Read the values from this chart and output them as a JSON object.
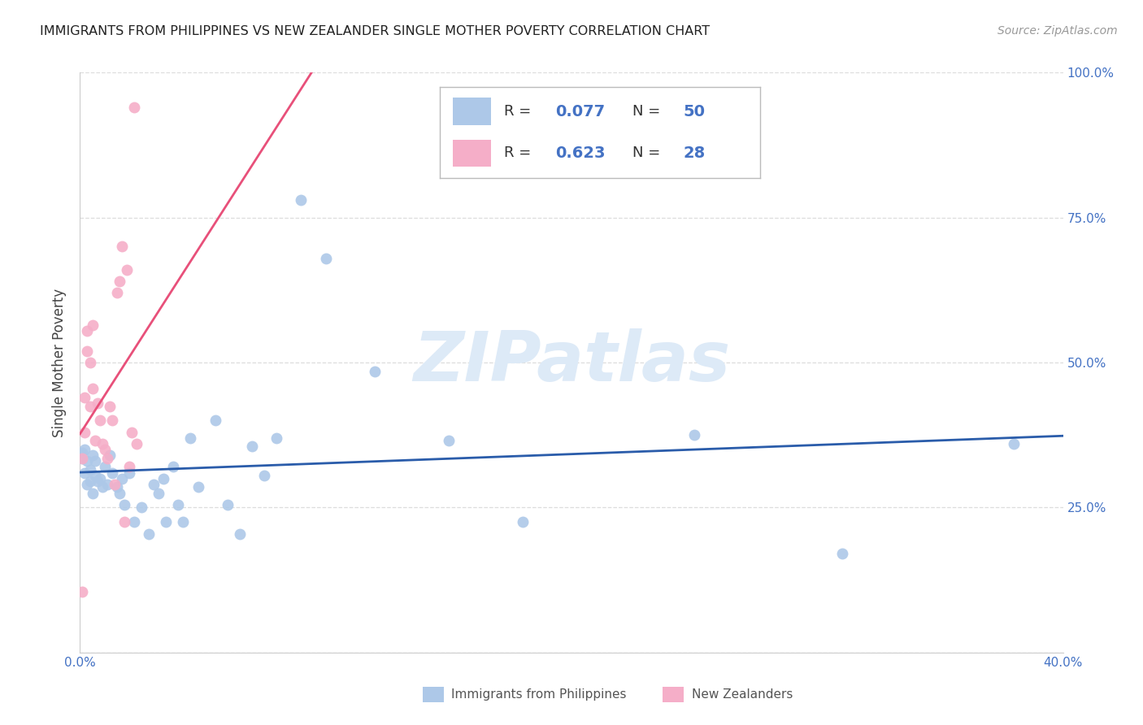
{
  "title": "IMMIGRANTS FROM PHILIPPINES VS NEW ZEALANDER SINGLE MOTHER POVERTY CORRELATION CHART",
  "source": "Source: ZipAtlas.com",
  "ylabel": "Single Mother Poverty",
  "blue_R": 0.077,
  "blue_N": 50,
  "pink_R": 0.623,
  "pink_N": 28,
  "blue_color": "#adc8e8",
  "pink_color": "#f5aec8",
  "blue_line_color": "#2a5caa",
  "pink_line_color": "#e8507a",
  "pink_line_dash_color": "#f0a0b8",
  "watermark_color": "#ddeaf7",
  "blue_scatter_x": [
    0.001,
    0.001,
    0.002,
    0.002,
    0.003,
    0.003,
    0.004,
    0.004,
    0.005,
    0.005,
    0.006,
    0.006,
    0.007,
    0.008,
    0.009,
    0.01,
    0.011,
    0.012,
    0.013,
    0.015,
    0.016,
    0.017,
    0.018,
    0.02,
    0.022,
    0.025,
    0.028,
    0.03,
    0.032,
    0.034,
    0.035,
    0.038,
    0.04,
    0.042,
    0.045,
    0.048,
    0.055,
    0.06,
    0.065,
    0.07,
    0.075,
    0.08,
    0.09,
    0.1,
    0.12,
    0.15,
    0.18,
    0.25,
    0.31,
    0.38
  ],
  "blue_scatter_y": [
    0.335,
    0.345,
    0.31,
    0.35,
    0.29,
    0.33,
    0.315,
    0.295,
    0.34,
    0.275,
    0.305,
    0.33,
    0.295,
    0.3,
    0.285,
    0.32,
    0.29,
    0.34,
    0.31,
    0.285,
    0.275,
    0.3,
    0.255,
    0.31,
    0.225,
    0.25,
    0.205,
    0.29,
    0.275,
    0.3,
    0.225,
    0.32,
    0.255,
    0.225,
    0.37,
    0.285,
    0.4,
    0.255,
    0.205,
    0.355,
    0.305,
    0.37,
    0.78,
    0.68,
    0.485,
    0.365,
    0.225,
    0.375,
    0.17,
    0.36
  ],
  "pink_scatter_x": [
    0.001,
    0.002,
    0.002,
    0.003,
    0.003,
    0.004,
    0.004,
    0.005,
    0.005,
    0.006,
    0.007,
    0.008,
    0.009,
    0.01,
    0.011,
    0.012,
    0.013,
    0.014,
    0.015,
    0.016,
    0.017,
    0.018,
    0.019,
    0.02,
    0.021,
    0.022,
    0.023,
    0.001
  ],
  "pink_scatter_y": [
    0.335,
    0.38,
    0.44,
    0.52,
    0.555,
    0.425,
    0.5,
    0.455,
    0.565,
    0.365,
    0.43,
    0.4,
    0.36,
    0.35,
    0.335,
    0.425,
    0.4,
    0.29,
    0.62,
    0.64,
    0.7,
    0.225,
    0.66,
    0.32,
    0.38,
    0.94,
    0.36,
    0.105
  ],
  "xlim": [
    0.0,
    0.4
  ],
  "ylim": [
    0.0,
    1.0
  ],
  "x_ticks": [
    0.0,
    0.05,
    0.1,
    0.15,
    0.2,
    0.25,
    0.3,
    0.35,
    0.4
  ],
  "y_ticks": [
    0.0,
    0.25,
    0.5,
    0.75,
    1.0
  ],
  "right_y_labels": [
    "25.0%",
    "50.0%",
    "75.0%",
    "100.0%"
  ],
  "right_y_ticks": [
    0.25,
    0.5,
    0.75,
    1.0
  ]
}
